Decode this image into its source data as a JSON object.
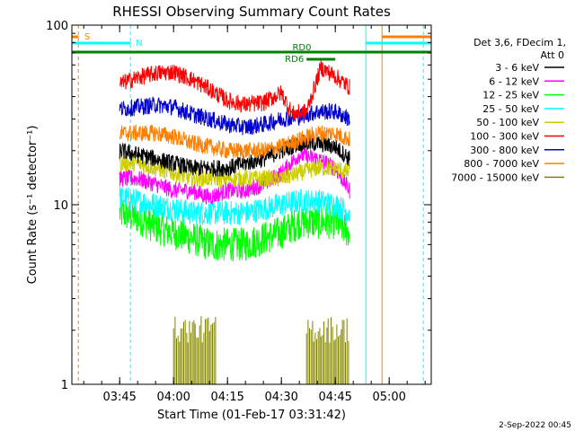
{
  "chart_data": {
    "type": "line",
    "title": "RHESSI Observing Summary Count Rates",
    "xlabel": "Start Time (01-Feb-17 03:31:42)",
    "ylabel": "Count Rate (s⁻¹ detector⁻¹)",
    "y_scale": "log",
    "ylim": [
      1,
      100
    ],
    "y_ticks": [
      {
        "value": 1,
        "label": "1"
      },
      {
        "value": 10,
        "label": "10"
      },
      {
        "value": 100,
        "label": "100"
      }
    ],
    "xlim": [
      "03:31:42",
      "05:11:42"
    ],
    "x_ticks": [
      "03:45",
      "04:00",
      "04:15",
      "04:30",
      "04:45",
      "05:00"
    ],
    "legend_header": [
      "Det 3,6, FDecim 1,",
      "Att 0"
    ],
    "legend_position": "right",
    "series": [
      {
        "name": "3 - 6 keV",
        "color": "#000000",
        "times": [
          "03:45",
          "03:50",
          "03:55",
          "04:00",
          "04:05",
          "04:10",
          "04:15",
          "04:20",
          "04:25",
          "04:30",
          "04:35",
          "04:40",
          "04:45",
          "04:49"
        ],
        "values": [
          20,
          19,
          18,
          17,
          16,
          16,
          16,
          17,
          18,
          20,
          22,
          22,
          21,
          18
        ]
      },
      {
        "name": "6 - 12 keV",
        "color": "#ff00ff",
        "times": [
          "03:45",
          "03:50",
          "03:55",
          "04:00",
          "04:05",
          "04:10",
          "04:15",
          "04:20",
          "04:25",
          "04:30",
          "04:35",
          "04:40",
          "04:45",
          "04:49"
        ],
        "values": [
          14,
          14,
          13,
          12,
          12,
          11,
          12,
          12,
          13,
          15,
          19,
          18,
          16,
          12
        ]
      },
      {
        "name": "12 - 25 keV",
        "color": "#00ff00",
        "times": [
          "03:45",
          "03:50",
          "03:55",
          "04:00",
          "04:05",
          "04:10",
          "04:15",
          "04:20",
          "04:25",
          "04:30",
          "04:35",
          "04:40",
          "04:45",
          "04:49"
        ],
        "values": [
          9,
          8.5,
          7.5,
          7,
          6.5,
          6,
          6,
          6,
          6.5,
          7,
          8,
          8,
          8,
          7
        ]
      },
      {
        "name": "25 - 50 keV",
        "color": "#00ffff",
        "times": [
          "03:45",
          "03:50",
          "03:55",
          "04:00",
          "04:05",
          "04:10",
          "04:15",
          "04:20",
          "04:25",
          "04:30",
          "04:35",
          "04:40",
          "04:45",
          "04:49"
        ],
        "values": [
          11,
          10.5,
          10,
          9.5,
          9,
          9,
          9,
          9,
          9.5,
          10,
          10.5,
          10.5,
          10,
          9
        ]
      },
      {
        "name": "50 - 100 keV",
        "color": "#cccc00",
        "times": [
          "03:45",
          "03:50",
          "03:55",
          "04:00",
          "04:05",
          "04:10",
          "04:15",
          "04:20",
          "04:25",
          "04:30",
          "04:35",
          "04:40",
          "04:45",
          "04:49"
        ],
        "values": [
          17,
          17,
          16,
          15,
          14,
          14,
          14,
          14,
          14,
          14,
          15,
          16,
          16,
          15
        ]
      },
      {
        "name": "100 - 300 keV",
        "color": "#ff0000",
        "times": [
          "03:45",
          "03:50",
          "03:55",
          "04:00",
          "04:05",
          "04:10",
          "04:15",
          "04:20",
          "04:25",
          "04:30",
          "04:33",
          "04:37",
          "04:41",
          "04:45",
          "04:49"
        ],
        "values": [
          47,
          51,
          54,
          55,
          50,
          44,
          38,
          36,
          37,
          42,
          32,
          33,
          58,
          52,
          45
        ]
      },
      {
        "name": "300 - 800 keV",
        "color": "#0000cc",
        "times": [
          "03:45",
          "03:50",
          "03:55",
          "04:00",
          "04:05",
          "04:10",
          "04:15",
          "04:20",
          "04:25",
          "04:30",
          "04:35",
          "04:40",
          "04:45",
          "04:49"
        ],
        "values": [
          34,
          35,
          36,
          35,
          32,
          30,
          28,
          27,
          28,
          30,
          31,
          33,
          33,
          30
        ]
      },
      {
        "name": "800 - 7000 keV",
        "color": "#ff8000",
        "times": [
          "03:45",
          "03:50",
          "03:55",
          "04:00",
          "04:05",
          "04:10",
          "04:15",
          "04:20",
          "04:25",
          "04:30",
          "04:35",
          "04:40",
          "04:45",
          "04:49"
        ],
        "values": [
          25,
          25,
          25,
          24,
          22,
          21,
          20,
          20,
          20,
          21,
          23,
          25,
          25,
          23
        ]
      },
      {
        "name": "7000 - 15000 keV",
        "color": "#808000",
        "times": [
          "04:00",
          "04:02",
          "04:04",
          "04:06",
          "04:08",
          "04:10",
          "04:37",
          "04:39",
          "04:41",
          "04:43",
          "04:45",
          "04:47"
        ],
        "values": [
          2,
          2,
          2,
          2,
          2,
          2,
          2,
          2,
          2,
          2,
          2,
          2
        ]
      }
    ],
    "annotations": {
      "flags": [
        {
          "label": "S",
          "color": "#ff8000",
          "start": "03:31:42",
          "end": "03:33:30"
        },
        {
          "label": "N",
          "color": "#00ffff",
          "start": "03:31:42",
          "end": "03:48:00"
        },
        {
          "label": "",
          "color": "#00ffff",
          "start": "04:53:30",
          "end": "05:11:42"
        },
        {
          "label": "",
          "color": "#ff8000",
          "start": "04:58:00",
          "end": "05:11:42"
        },
        {
          "label": "RD0",
          "color": "#008000",
          "start": "03:31:42",
          "end": "05:11:42"
        },
        {
          "label": "RD6",
          "color": "#008000",
          "start": "04:37:00",
          "end": "04:45:00"
        }
      ],
      "vlines": [
        {
          "time": "03:33:30",
          "color": "#ff8000",
          "style": "dashed"
        },
        {
          "time": "03:48:00",
          "color": "#00ffff",
          "style": "dashed"
        },
        {
          "time": "04:53:30",
          "color": "#00ffff",
          "style": "solid"
        },
        {
          "time": "04:58:00",
          "color": "#ff8000",
          "style": "solid"
        },
        {
          "time": "05:09:30",
          "color": "#00ffff",
          "style": "dashed"
        }
      ]
    },
    "footer_date": "2-Sep-2022 00:45",
    "grid": false
  }
}
